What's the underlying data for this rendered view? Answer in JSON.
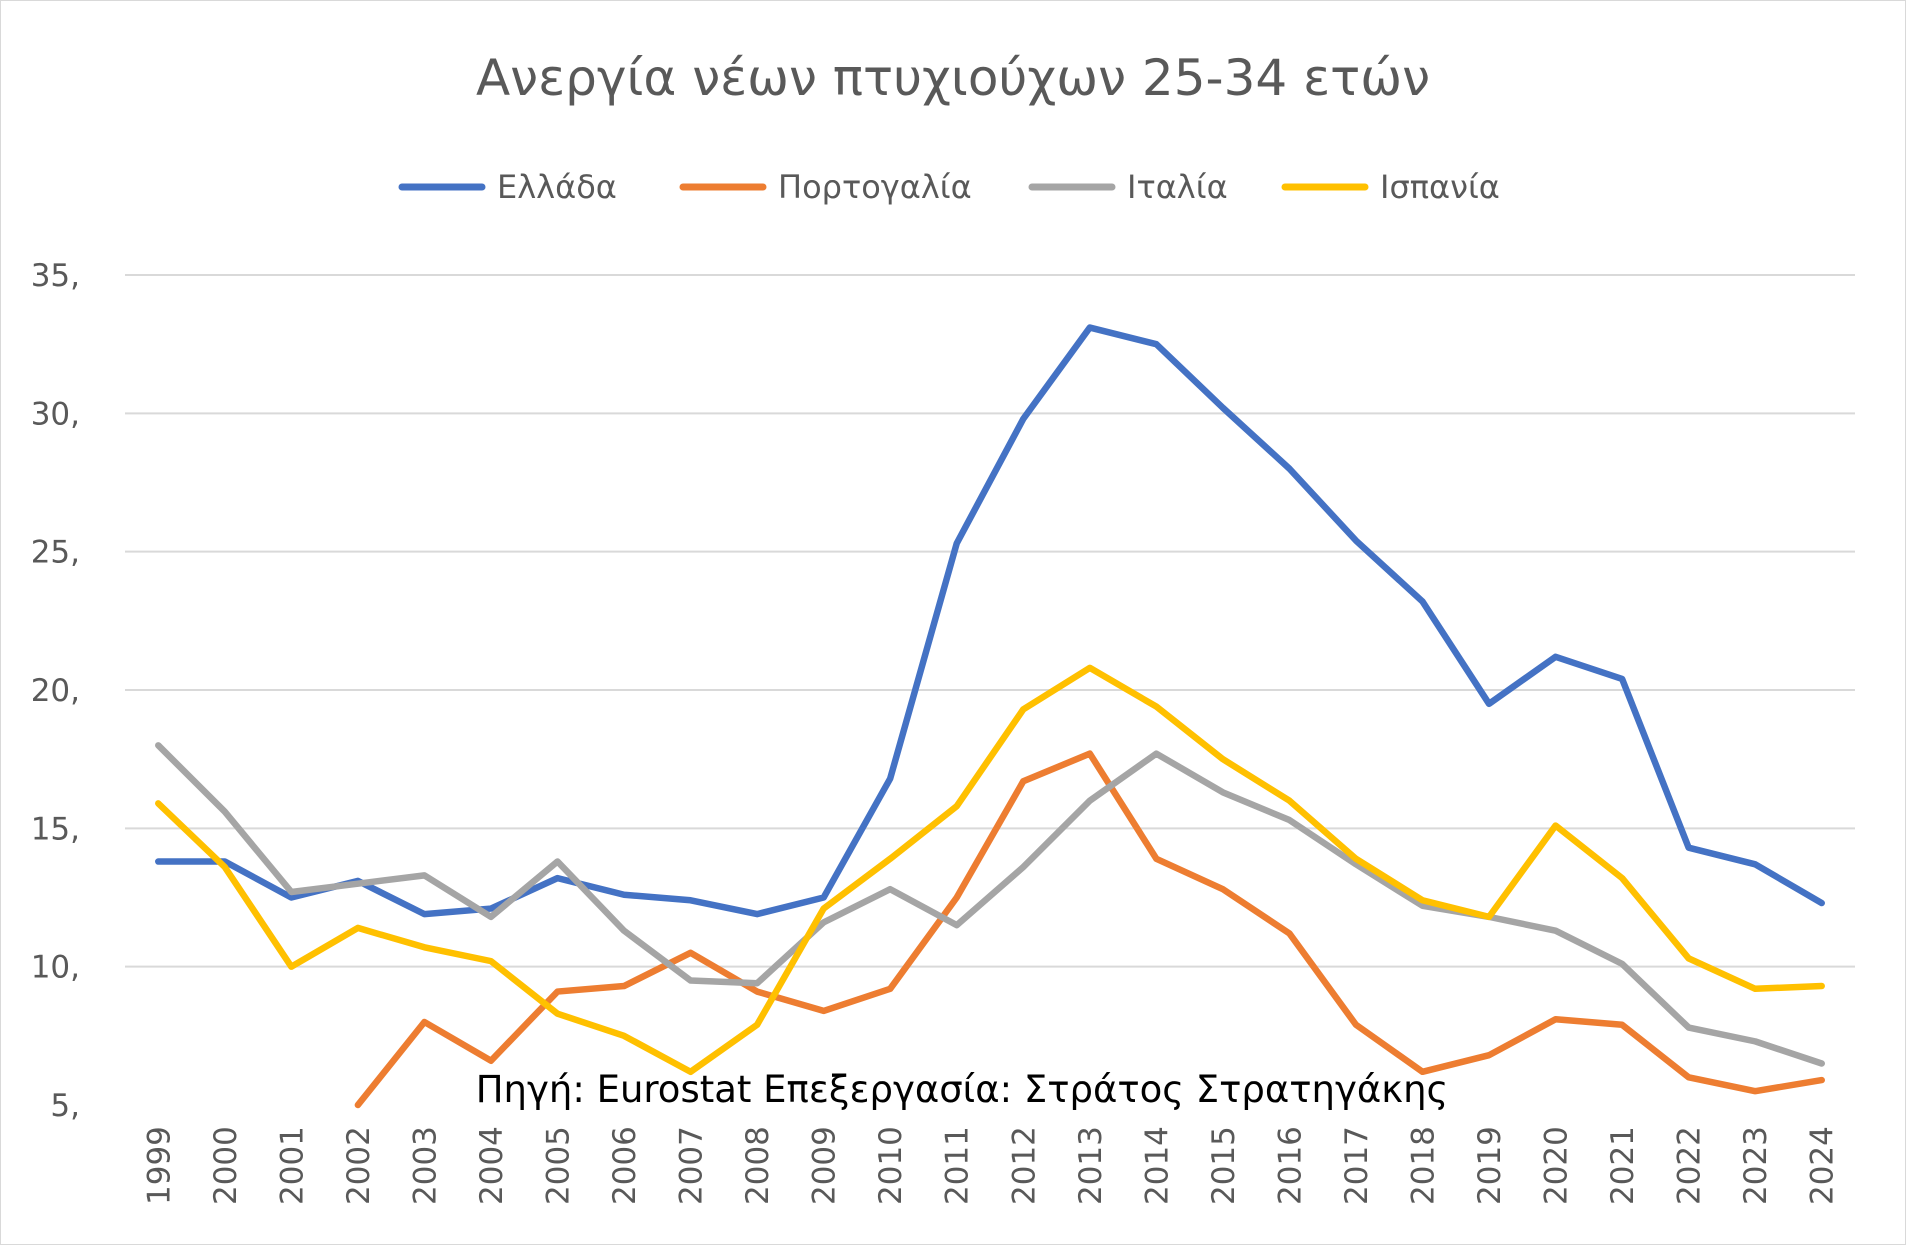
{
  "chart_data": {
    "type": "line",
    "title": "Ανεργία νέων πτυχιούχων 25-34 ετών",
    "annotation": "Πηγή: Eurostat Επεξεργασία: Στράτος Στρατηγάκης",
    "x": [
      "1999",
      "2000",
      "2001",
      "2002",
      "2003",
      "2004",
      "2005",
      "2006",
      "2007",
      "2008",
      "2009",
      "2010",
      "2011",
      "2012",
      "2013",
      "2014",
      "2015",
      "2016",
      "2017",
      "2018",
      "2019",
      "2020",
      "2021",
      "2022",
      "2023",
      "2024"
    ],
    "ylim": [
      5,
      35
    ],
    "yticks": [
      5,
      10,
      15,
      20,
      25,
      30,
      35
    ],
    "ytick_labels": [
      "5,",
      "10,",
      "15,",
      "20,",
      "25,",
      "30,",
      "35,"
    ],
    "grid": true,
    "legend_position": "top",
    "series": [
      {
        "name": "Ελλάδα",
        "color": "#4472C4",
        "values": [
          13.8,
          13.8,
          12.5,
          13.1,
          11.9,
          12.1,
          13.2,
          12.6,
          12.4,
          11.9,
          12.5,
          16.8,
          25.3,
          29.8,
          33.1,
          32.5,
          30.2,
          28.0,
          25.4,
          23.2,
          19.5,
          21.2,
          20.4,
          14.3,
          13.7,
          12.3
        ]
      },
      {
        "name": "Πορτογαλία",
        "color": "#ED7D31",
        "values": [
          null,
          null,
          null,
          5.0,
          8.0,
          6.6,
          9.1,
          9.3,
          10.5,
          9.1,
          8.4,
          9.2,
          12.5,
          16.7,
          17.7,
          13.9,
          12.8,
          11.2,
          7.9,
          6.2,
          6.8,
          8.1,
          7.9,
          6.0,
          5.5,
          5.9
        ]
      },
      {
        "name": "Ιταλία",
        "color": "#A5A5A5",
        "values": [
          18.0,
          15.6,
          12.7,
          13.0,
          13.3,
          11.8,
          13.8,
          11.3,
          9.5,
          9.4,
          11.6,
          12.8,
          11.5,
          13.6,
          16.0,
          17.7,
          16.3,
          15.3,
          13.7,
          12.2,
          11.8,
          11.3,
          10.1,
          7.8,
          7.3,
          6.5
        ]
      },
      {
        "name": "Ισπανία",
        "color": "#FFC000",
        "values": [
          15.9,
          13.6,
          10.0,
          11.4,
          10.7,
          10.2,
          8.3,
          7.5,
          6.2,
          7.9,
          12.1,
          13.9,
          15.8,
          19.3,
          20.8,
          19.4,
          17.5,
          16.0,
          13.9,
          12.4,
          11.8,
          15.1,
          13.2,
          10.3,
          9.2,
          9.3
        ]
      }
    ]
  }
}
